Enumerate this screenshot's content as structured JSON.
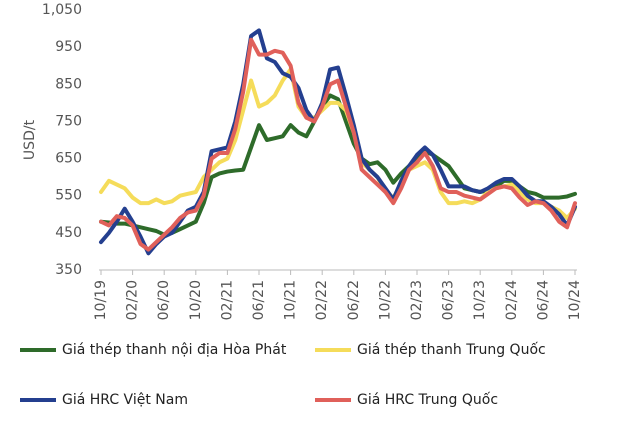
{
  "chart_data": {
    "type": "line",
    "y_label": "USD/t",
    "categories": [
      "10/19",
      null,
      null,
      null,
      "02/20",
      null,
      null,
      null,
      "06/20",
      null,
      null,
      null,
      "10/20",
      null,
      null,
      null,
      "02/21",
      null,
      null,
      null,
      "06/21",
      null,
      null,
      null,
      "10/21",
      null,
      null,
      null,
      "02/22",
      null,
      null,
      null,
      "06/22",
      null,
      null,
      null,
      "10/22",
      null,
      null,
      null,
      "02/23",
      null,
      null,
      null,
      "06/23",
      null,
      null,
      null,
      "10/23",
      null,
      null,
      null,
      "02/24",
      null,
      null,
      null,
      "06/24",
      null,
      null,
      null,
      "10/24"
    ],
    "ylim": [
      350,
      1050
    ],
    "yticks": [
      350,
      450,
      550,
      650,
      750,
      850,
      950,
      {
        "value": 1050,
        "label": "1,050"
      }
    ],
    "grid": false,
    "series": [
      {
        "name": "Giá thép thanh nội địa Hòa Phát",
        "color": "#2e6b2a",
        "values": [
          480,
          478,
          475,
          475,
          470,
          465,
          460,
          455,
          445,
          450,
          460,
          470,
          480,
          530,
          600,
          610,
          615,
          618,
          620,
          680,
          740,
          700,
          705,
          710,
          740,
          720,
          710,
          750,
          790,
          820,
          810,
          750,
          690,
          650,
          635,
          640,
          620,
          585,
          610,
          630,
          650,
          670,
          660,
          645,
          630,
          600,
          570,
          565,
          560,
          565,
          575,
          590,
          590,
          575,
          560,
          555,
          545,
          545,
          545,
          548,
          555
        ]
      },
      {
        "name": "Giá thép thanh Trung Quốc",
        "color": "#f5dc5a",
        "values": [
          560,
          590,
          580,
          570,
          545,
          530,
          530,
          540,
          530,
          535,
          550,
          555,
          560,
          600,
          620,
          640,
          650,
          700,
          780,
          860,
          790,
          800,
          820,
          860,
          890,
          790,
          760,
          760,
          780,
          800,
          800,
          780,
          720,
          640,
          620,
          600,
          560,
          545,
          580,
          620,
          630,
          640,
          620,
          560,
          530,
          530,
          535,
          530,
          540,
          560,
          570,
          575,
          580,
          560,
          540,
          530,
          530,
          520,
          510,
          490,
          515
        ]
      },
      {
        "name": "Giá HRC Việt Nam",
        "color": "#243f8f",
        "values": [
          425,
          450,
          480,
          515,
          480,
          440,
          395,
          420,
          440,
          450,
          480,
          510,
          520,
          560,
          670,
          675,
          680,
          750,
          850,
          980,
          995,
          920,
          910,
          880,
          870,
          840,
          780,
          750,
          800,
          890,
          895,
          820,
          740,
          650,
          620,
          600,
          570,
          540,
          590,
          630,
          660,
          680,
          660,
          620,
          575,
          575,
          575,
          565,
          560,
          570,
          585,
          595,
          595,
          575,
          550,
          535,
          535,
          520,
          500,
          470,
          520
        ]
      },
      {
        "name": "Giá HRC Trung Quốc",
        "color": "#e0605a",
        "values": [
          480,
          470,
          495,
          490,
          470,
          420,
          405,
          425,
          445,
          465,
          490,
          505,
          510,
          550,
          650,
          665,
          665,
          730,
          830,
          970,
          930,
          930,
          940,
          935,
          900,
          800,
          760,
          750,
          790,
          850,
          860,
          790,
          720,
          620,
          600,
          580,
          560,
          530,
          570,
          620,
          640,
          665,
          630,
          570,
          560,
          560,
          550,
          545,
          540,
          555,
          570,
          575,
          570,
          545,
          525,
          535,
          530,
          510,
          480,
          465,
          530
        ]
      }
    ]
  }
}
